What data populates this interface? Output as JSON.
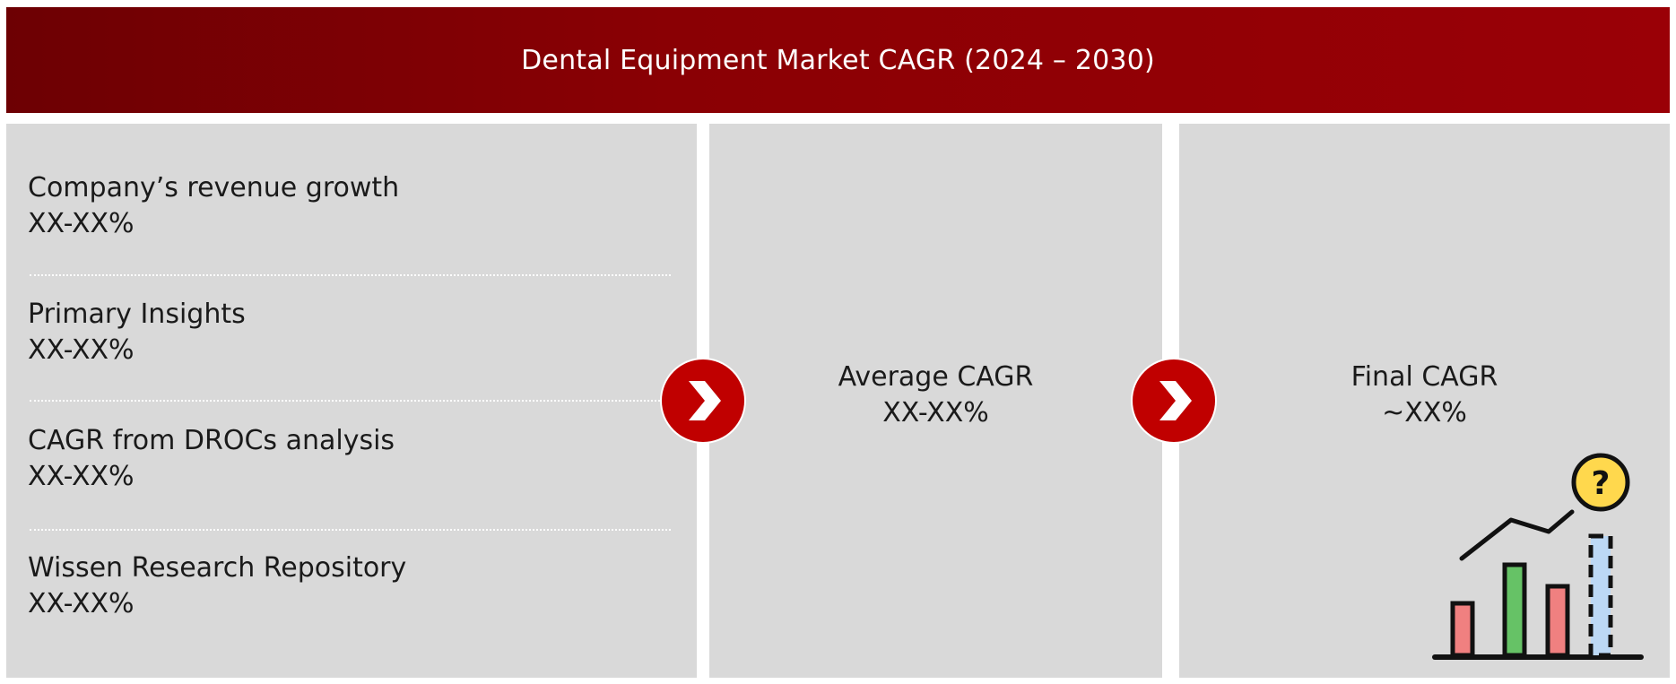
{
  "header": {
    "title": "Dental Equipment Market CAGR (2024 – 2030)"
  },
  "sources": [
    {
      "label": "Company’s revenue growth",
      "value": "XX-XX%"
    },
    {
      "label": "Primary Insights",
      "value": "XX-XX%"
    },
    {
      "label": "CAGR from DROCs analysis",
      "value": "XX-XX%"
    },
    {
      "label": "Wissen Research Repository",
      "value": "XX-XX%"
    }
  ],
  "average": {
    "label": "Average CAGR",
    "value": "XX-XX%"
  },
  "final": {
    "label": "Final CAGR",
    "value": "~XX%"
  },
  "icons": {
    "arrow": "chevron-right-icon",
    "illustration": "growth-chart-question-icon"
  },
  "colors": {
    "header": "#8a0004",
    "panel": "#d9d9d9",
    "arrow": "#c00000"
  }
}
